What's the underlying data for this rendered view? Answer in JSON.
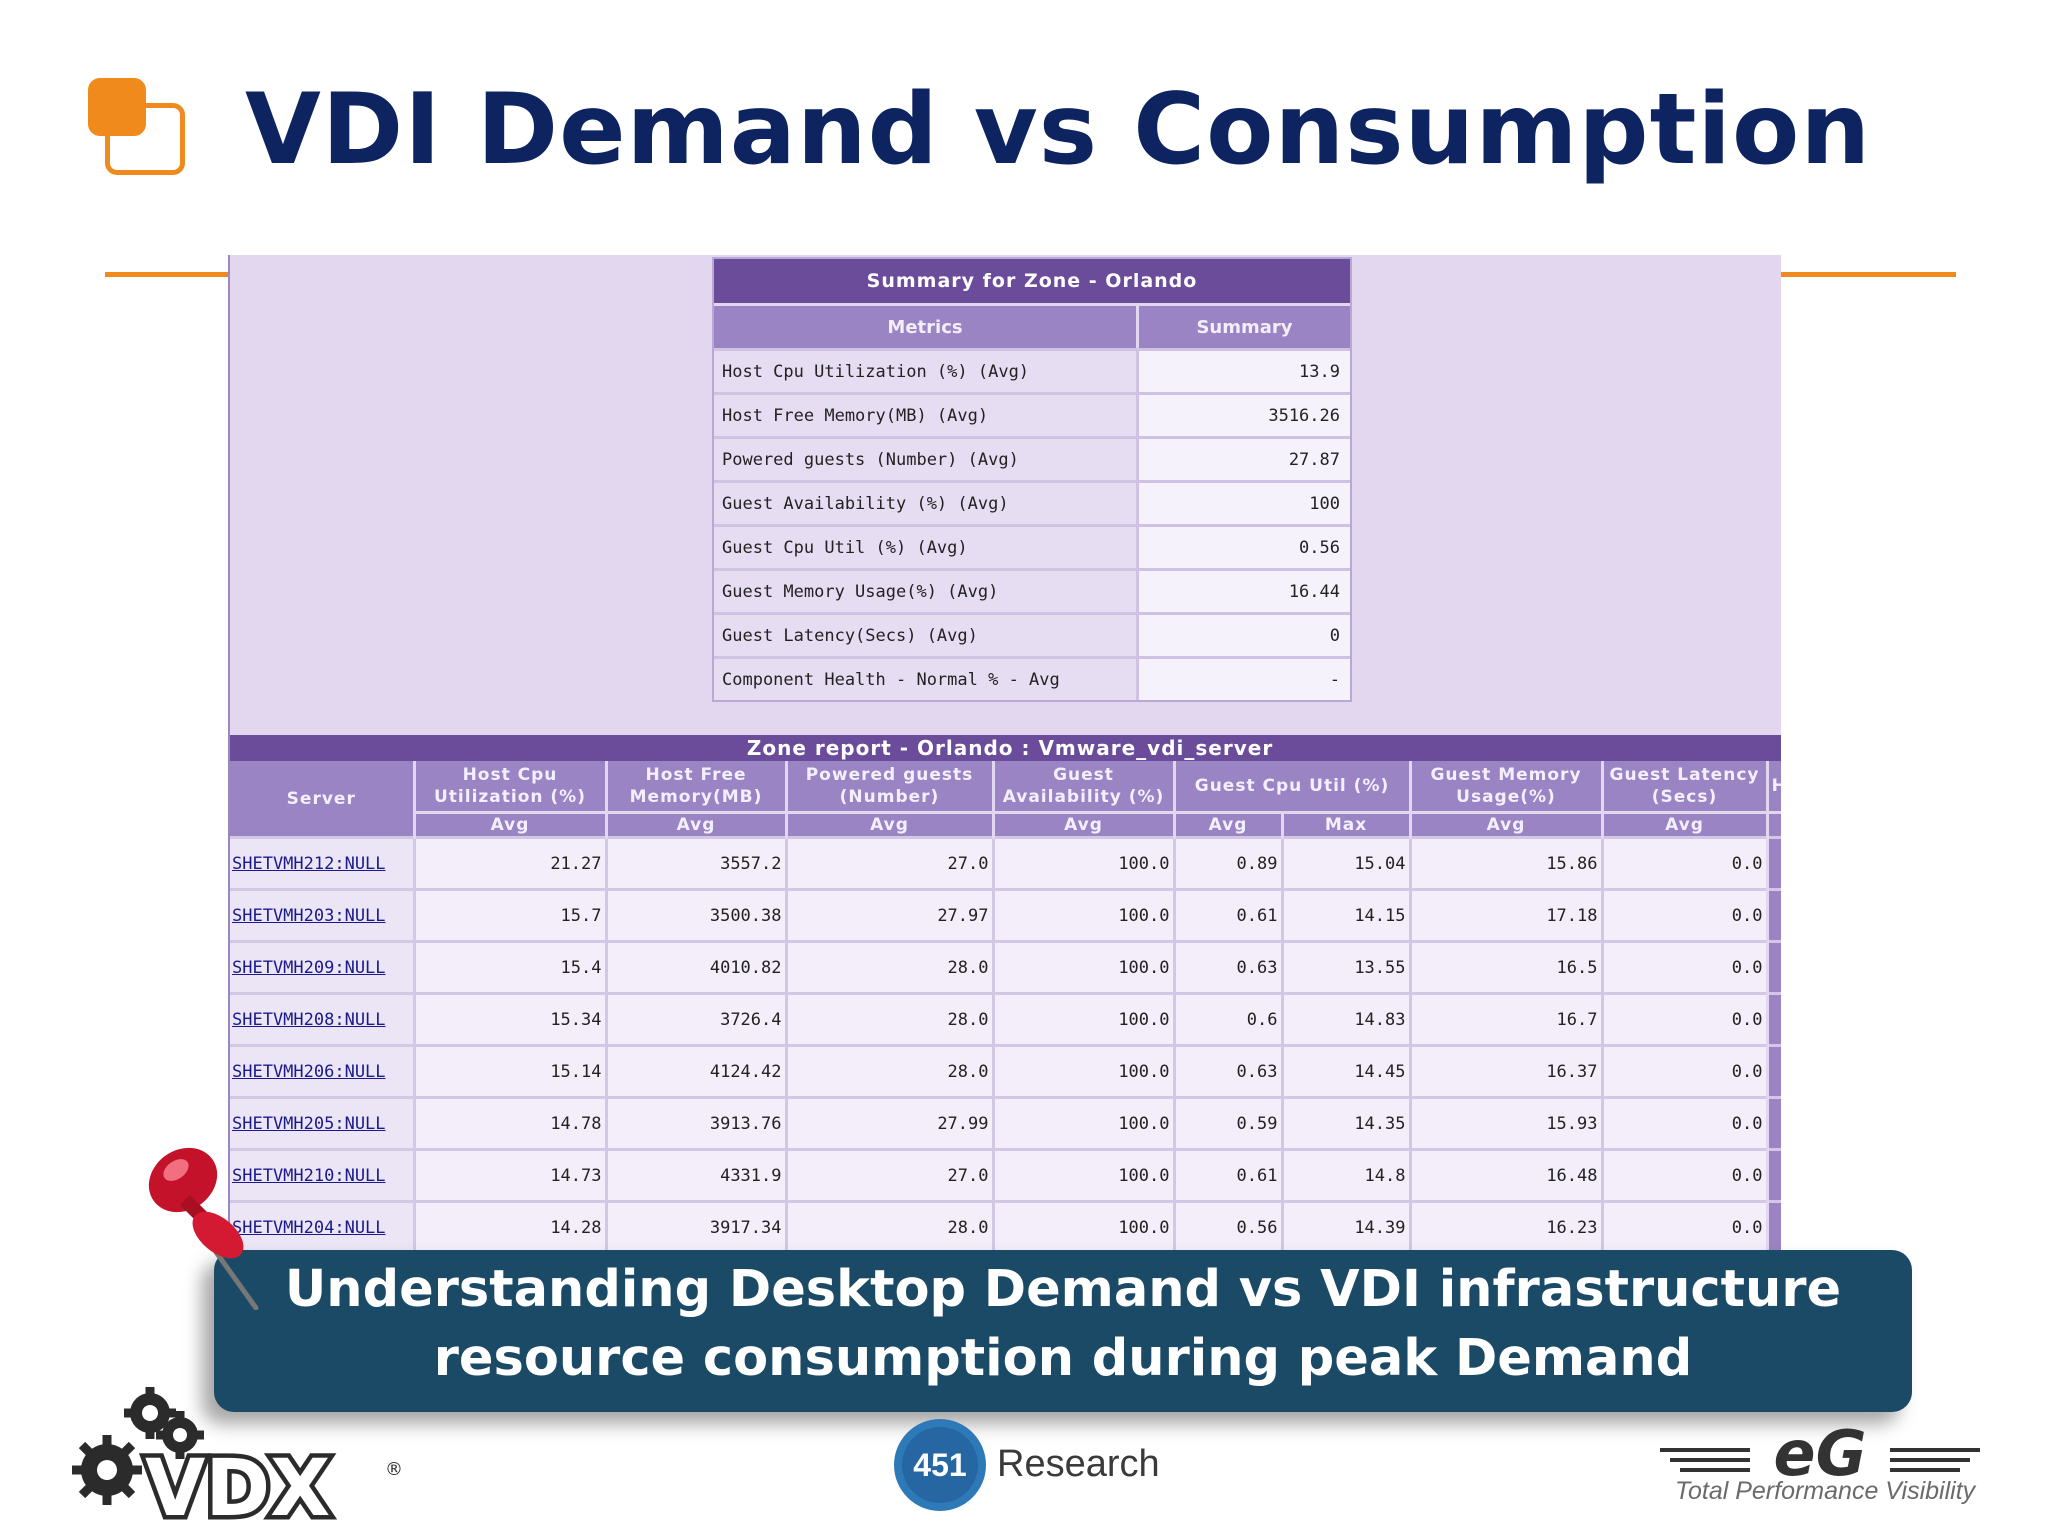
{
  "slide": {
    "title": "VDI Demand vs Consumption",
    "banner_line1": "Understanding Desktop Demand vs VDI infrastructure",
    "banner_line2": "resource consumption during peak Demand"
  },
  "summary": {
    "caption": "Summary for Zone - Orlando",
    "headers": [
      "Metrics",
      "Summary"
    ],
    "rows": [
      {
        "metric": "Host Cpu Utilization (%) (Avg)",
        "value": "13.9"
      },
      {
        "metric": "Host Free Memory(MB) (Avg)",
        "value": "3516.26"
      },
      {
        "metric": "Powered guests (Number) (Avg)",
        "value": "27.87"
      },
      {
        "metric": "Guest Availability (%) (Avg)",
        "value": "100"
      },
      {
        "metric": "Guest Cpu Util (%) (Avg)",
        "value": "0.56"
      },
      {
        "metric": "Guest Memory Usage(%) (Avg)",
        "value": "16.44"
      },
      {
        "metric": "Guest Latency(Secs) (Avg)",
        "value": "0"
      },
      {
        "metric": "Component Health - Normal % - Avg",
        "value": "-"
      }
    ]
  },
  "zone_report": {
    "caption": "Zone report - Orlando : Vmware_vdi_server",
    "headers": {
      "server": "Server",
      "host_cpu_1": "Host Cpu",
      "host_cpu_2": "Utilization (%)",
      "host_free_1": "Host Free",
      "host_free_2": "Memory(MB)",
      "powered_1": "Powered guests",
      "powered_2": "(Number)",
      "avail_1": "Guest",
      "avail_2": "Availability (%)",
      "guest_cpu": "Guest Cpu Util (%)",
      "guest_mem_1": "Guest Memory",
      "guest_mem_2": "Usage(%)",
      "latency_1": "Guest Latency",
      "latency_2": "(Secs)",
      "cut": "H"
    },
    "sub": {
      "avg": "Avg",
      "max": "Max"
    },
    "rows": [
      {
        "server": "SHETVMH212:NULL",
        "host_cpu": "21.27",
        "host_free": "3557.2",
        "powered": "27.0",
        "avail": "100.0",
        "gcpu_avg": "0.89",
        "gcpu_max": "15.04",
        "gmem": "15.86",
        "latency": "0.0"
      },
      {
        "server": "SHETVMH203:NULL",
        "host_cpu": "15.7",
        "host_free": "3500.38",
        "powered": "27.97",
        "avail": "100.0",
        "gcpu_avg": "0.61",
        "gcpu_max": "14.15",
        "gmem": "17.18",
        "latency": "0.0"
      },
      {
        "server": "SHETVMH209:NULL",
        "host_cpu": "15.4",
        "host_free": "4010.82",
        "powered": "28.0",
        "avail": "100.0",
        "gcpu_avg": "0.63",
        "gcpu_max": "13.55",
        "gmem": "16.5",
        "latency": "0.0"
      },
      {
        "server": "SHETVMH208:NULL",
        "host_cpu": "15.34",
        "host_free": "3726.4",
        "powered": "28.0",
        "avail": "100.0",
        "gcpu_avg": "0.6",
        "gcpu_max": "14.83",
        "gmem": "16.7",
        "latency": "0.0"
      },
      {
        "server": "SHETVMH206:NULL",
        "host_cpu": "15.14",
        "host_free": "4124.42",
        "powered": "28.0",
        "avail": "100.0",
        "gcpu_avg": "0.63",
        "gcpu_max": "14.45",
        "gmem": "16.37",
        "latency": "0.0"
      },
      {
        "server": "SHETVMH205:NULL",
        "host_cpu": "14.78",
        "host_free": "3913.76",
        "powered": "27.99",
        "avail": "100.0",
        "gcpu_avg": "0.59",
        "gcpu_max": "14.35",
        "gmem": "15.93",
        "latency": "0.0"
      },
      {
        "server": "SHETVMH210:NULL",
        "host_cpu": "14.73",
        "host_free": "4331.9",
        "powered": "27.0",
        "avail": "100.0",
        "gcpu_avg": "0.61",
        "gcpu_max": "14.8",
        "gmem": "16.48",
        "latency": "0.0"
      },
      {
        "server": "SHETVMH204:NULL",
        "host_cpu": "14.28",
        "host_free": "3917.34",
        "powered": "28.0",
        "avail": "100.0",
        "gcpu_avg": "0.56",
        "gcpu_max": "14.39",
        "gmem": "16.23",
        "latency": "0.0"
      }
    ]
  },
  "logos": {
    "vdx": "VDX",
    "vdx_mark": "®",
    "research_number": "451",
    "research_word": "Research",
    "eg": "eG",
    "eg_tagline": "Total Performance Visibility"
  },
  "icons": [
    "title-bullet-icon",
    "pushpin-icon",
    "gears-icon"
  ],
  "colors": {
    "title": "#0d2461",
    "accent": "#f08a1c",
    "banner": "#1b4a66",
    "header": "#6b4c9a",
    "subheader": "#9a84c3"
  }
}
